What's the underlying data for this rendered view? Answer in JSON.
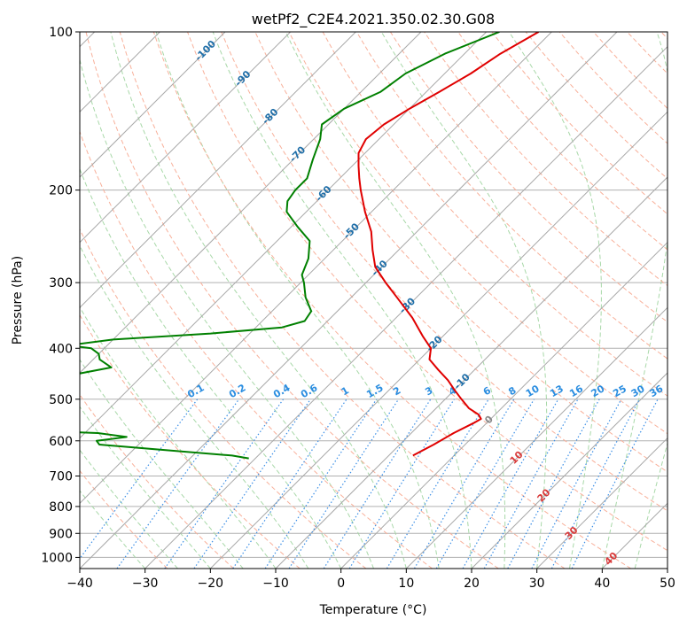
{
  "chart_data": {
    "type": "line",
    "diagram": "skew-t log-p",
    "title": "wetPf2_C2E4.2021.350.02.30.G08",
    "xlabel": "Temperature (°C)",
    "ylabel": "Pressure (hPa)",
    "xlim": [
      -40,
      50
    ],
    "ylim": [
      1050,
      100
    ],
    "y_scale": "log",
    "grid": true,
    "x_ticks": [
      -40,
      -30,
      -20,
      -10,
      0,
      10,
      20,
      30,
      40,
      50
    ],
    "y_ticks": [
      100,
      200,
      300,
      400,
      500,
      600,
      700,
      800,
      900,
      1000
    ],
    "isotherm_spacing_c": 10,
    "dry_adiabat_labels": [
      "-100",
      "-90",
      "-80",
      "-70",
      "-60",
      "-50",
      "-40",
      "-30",
      "-20",
      "-10",
      "0",
      "10",
      "20",
      "30",
      "40"
    ],
    "mixing_ratio_labels": [
      "0.1",
      "0.2",
      "0.4",
      "0.6",
      "1",
      "1.5",
      "2",
      "3",
      "4",
      "6",
      "8",
      "10",
      "13",
      "16",
      "20",
      "25",
      "30",
      "36"
    ],
    "colors": {
      "temperature": "#e00000",
      "dewpoint": "#008000",
      "grid": "#b0b0b0",
      "isotherm": "#a8a8a8",
      "dry_adiabat": "#f8b09a",
      "moist_adiabat": "#a8d8a8",
      "mixing_ratio": "#3a8ee6",
      "dry_label": "#1f6ea8",
      "mixing_label": "#2a8de0",
      "isotherm_label": "#d93a3a"
    },
    "series": [
      {
        "name": "Temperature",
        "x_field": "T",
        "points": [
          {
            "p": 100,
            "T": -52
          },
          {
            "p": 110,
            "T": -54.5
          },
          {
            "p": 120,
            "T": -56
          },
          {
            "p": 130,
            "T": -58
          },
          {
            "p": 140,
            "T": -60
          },
          {
            "p": 150,
            "T": -61.5
          },
          {
            "p": 160,
            "T": -62
          },
          {
            "p": 170,
            "T": -61
          },
          {
            "p": 180,
            "T": -59
          },
          {
            "p": 190,
            "T": -57
          },
          {
            "p": 200,
            "T": -55
          },
          {
            "p": 220,
            "T": -51
          },
          {
            "p": 240,
            "T": -47
          },
          {
            "p": 260,
            "T": -44
          },
          {
            "p": 280,
            "T": -41
          },
          {
            "p": 300,
            "T": -37
          },
          {
            "p": 320,
            "T": -33
          },
          {
            "p": 350,
            "T": -27.5
          },
          {
            "p": 380,
            "T": -23
          },
          {
            "p": 400,
            "T": -20
          },
          {
            "p": 420,
            "T": -18.5
          },
          {
            "p": 440,
            "T": -15.5
          },
          {
            "p": 460,
            "T": -12.5
          },
          {
            "p": 480,
            "T": -10
          },
          {
            "p": 500,
            "T": -7.5
          },
          {
            "p": 520,
            "T": -5
          },
          {
            "p": 535,
            "T": -2.5
          },
          {
            "p": 545,
            "T": -1.5
          },
          {
            "p": 555,
            "T": -2
          },
          {
            "p": 580,
            "T": -3.5
          },
          {
            "p": 610,
            "T": -4.8
          },
          {
            "p": 640,
            "T": -6.3
          }
        ]
      },
      {
        "name": "Dewpoint",
        "x_field": "Td",
        "points": [
          {
            "p": 100,
            "Td": -58
          },
          {
            "p": 110,
            "Td": -63
          },
          {
            "p": 120,
            "Td": -66
          },
          {
            "p": 130,
            "Td": -67
          },
          {
            "p": 140,
            "Td": -70
          },
          {
            "p": 150,
            "Td": -71
          },
          {
            "p": 160,
            "Td": -69
          },
          {
            "p": 175,
            "Td": -67
          },
          {
            "p": 190,
            "Td": -65
          },
          {
            "p": 200,
            "Td": -65
          },
          {
            "p": 210,
            "Td": -64.5
          },
          {
            "p": 220,
            "Td": -63
          },
          {
            "p": 235,
            "Td": -59
          },
          {
            "p": 250,
            "Td": -55
          },
          {
            "p": 270,
            "Td": -52.5
          },
          {
            "p": 290,
            "Td": -51
          },
          {
            "p": 300,
            "Td": -49.5
          },
          {
            "p": 320,
            "Td": -47
          },
          {
            "p": 340,
            "Td": -44
          },
          {
            "p": 355,
            "Td": -43.5
          },
          {
            "p": 365,
            "Td": -46
          },
          {
            "p": 375,
            "Td": -56
          },
          {
            "p": 385,
            "Td": -70
          },
          {
            "p": 395,
            "Td": -76
          },
          {
            "p": 400,
            "Td": -72
          },
          {
            "p": 410,
            "Td": -70
          },
          {
            "p": 420,
            "Td": -69
          },
          {
            "p": 435,
            "Td": -66
          },
          {
            "p": 450,
            "Td": -71
          },
          {
            "p": 460,
            "Td": -85
          },
          {
            "p": 467,
            "Td": -97
          },
          {
            "p": 470,
            "Td": -98
          },
          {
            "p": 475,
            "Td": -88
          },
          {
            "p": 480,
            "Td": -80
          },
          {
            "p": 485,
            "Td": -75
          },
          {
            "p": 490,
            "Td": -82
          },
          {
            "p": 497,
            "Td": -97
          },
          {
            "p": 502,
            "Td": -102
          },
          {
            "p": 505,
            "Td": -105
          },
          {
            "p": 562,
            "Td": -107
          },
          {
            "p": 566,
            "Td": -95
          },
          {
            "p": 572,
            "Td": -72
          },
          {
            "p": 580,
            "Td": -58
          },
          {
            "p": 590,
            "Td": -53
          },
          {
            "p": 600,
            "Td": -57
          },
          {
            "p": 610,
            "Td": -56
          },
          {
            "p": 625,
            "Td": -45
          },
          {
            "p": 640,
            "Td": -34
          },
          {
            "p": 648,
            "Td": -31
          }
        ]
      }
    ]
  }
}
